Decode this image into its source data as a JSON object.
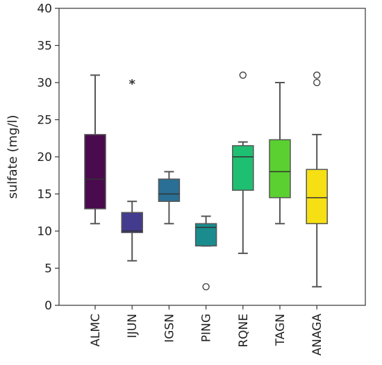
{
  "chart_data": {
    "type": "boxplot",
    "ylabel": "sulfate (mg/l)",
    "xlabel": "",
    "ylim": [
      0,
      40
    ],
    "yticks": [
      0,
      5,
      10,
      15,
      20,
      25,
      30,
      35,
      40
    ],
    "grid": false,
    "legend": "none",
    "categories": [
      "ALMC",
      "IJUN",
      "IGSN",
      "PING",
      "RQNE",
      "TAGN",
      "ANAGA"
    ],
    "boxes": [
      {
        "name": "ALMC",
        "color": "#4a0a4e",
        "whisker_low": 11,
        "q1": 13,
        "median": 17,
        "q3": 23,
        "whisker_high": 31,
        "outliers": [],
        "extremes": []
      },
      {
        "name": "IJUN",
        "color": "#433b8d",
        "whisker_low": 6,
        "q1": 9.8,
        "median": 10,
        "q3": 12.5,
        "whisker_high": 14,
        "outliers": [],
        "extremes": [
          30
        ]
      },
      {
        "name": "IGSN",
        "color": "#2a6f95",
        "whisker_low": 11,
        "q1": 14,
        "median": 15,
        "q3": 17,
        "whisker_high": 18,
        "outliers": [],
        "extremes": []
      },
      {
        "name": "PING",
        "color": "#1a8c8e",
        "whisker_low": 8,
        "q1": 8,
        "median": 10.5,
        "q3": 11,
        "whisker_high": 12,
        "outliers": [
          2.5
        ],
        "extremes": []
      },
      {
        "name": "RQNE",
        "color": "#1fbf72",
        "whisker_low": 7,
        "q1": 15.5,
        "median": 20,
        "q3": 21.5,
        "whisker_high": 22,
        "outliers": [
          31
        ],
        "extremes": []
      },
      {
        "name": "TAGN",
        "color": "#5ad130",
        "whisker_low": 11,
        "q1": 14.5,
        "median": 18,
        "q3": 22.3,
        "whisker_high": 30,
        "outliers": [],
        "extremes": []
      },
      {
        "name": "ANAGA",
        "color": "#f6e014",
        "whisker_low": 2.5,
        "q1": 11,
        "median": 14.5,
        "q3": 18.3,
        "whisker_high": 23,
        "outliers": [
          30,
          31
        ],
        "extremes": []
      }
    ]
  }
}
